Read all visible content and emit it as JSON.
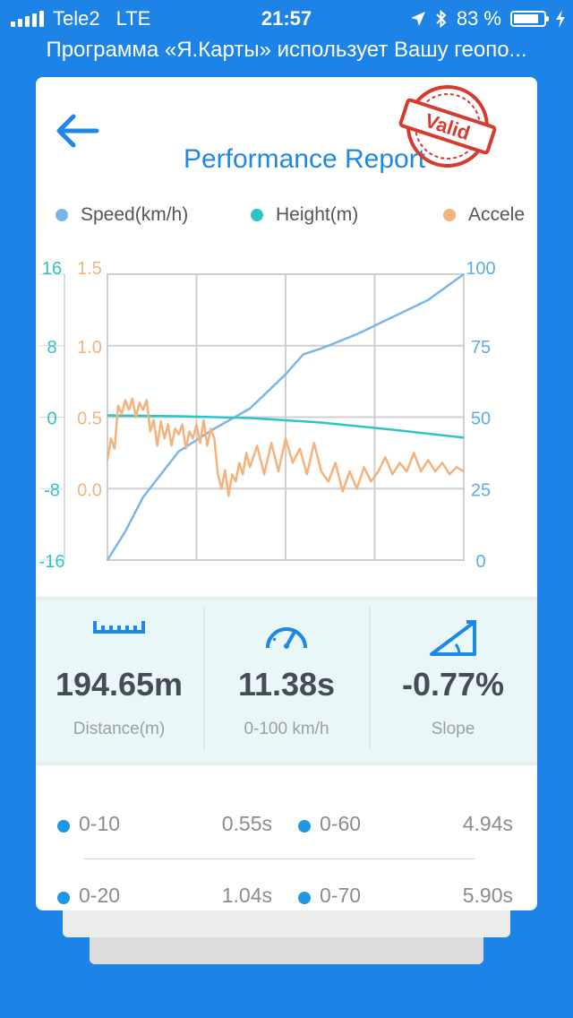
{
  "status": {
    "carrier": "Tele2",
    "network": "LTE",
    "time": "21:57",
    "battery": "83 %",
    "battery_level": 0.83
  },
  "banner": "Программа «Я.Карты» использует Вашу геопо...",
  "report": {
    "title": "Performance Report",
    "stamp_text": "Valid",
    "legend": [
      {
        "label": "Speed(km/h)",
        "color": "#7ab6ea"
      },
      {
        "label": "Height(m)",
        "color": "#2ec4c4"
      },
      {
        "label": "Accele",
        "color": "#f5b27c"
      }
    ]
  },
  "chart_data": {
    "type": "line",
    "axes": {
      "height_ticks": [
        "16",
        "8",
        "0",
        "-8",
        "-16"
      ],
      "accel_ticks": [
        "1.5",
        "1.0",
        "0.5",
        "0.0"
      ],
      "speed_ticks": [
        "100",
        "75",
        "50",
        "25",
        "0"
      ],
      "height_range": [
        -16,
        16
      ],
      "accel_range": [
        -0.5,
        1.5
      ],
      "speed_range": [
        0,
        100
      ]
    },
    "x_range": [
      0,
      10
    ],
    "grid": true,
    "series": [
      {
        "name": "Speed(km/h)",
        "axis": "speed",
        "color": "#7ab6ea",
        "x": [
          0,
          0.5,
          1,
          2,
          3,
          4,
          5,
          5.5,
          6,
          7,
          8,
          9,
          10
        ],
        "y": [
          0,
          10,
          22,
          38,
          46,
          53,
          65,
          72,
          74,
          79,
          85,
          91,
          100
        ]
      },
      {
        "name": "Height(m)",
        "axis": "height",
        "color": "#2ec4c4",
        "x": [
          0,
          2,
          4,
          6,
          8,
          10
        ],
        "y": [
          0.2,
          0.1,
          -0.1,
          -0.6,
          -1.4,
          -2.3
        ]
      },
      {
        "name": "Accele",
        "axis": "accel",
        "color": "#f5b27c",
        "x": [
          0,
          0.1,
          0.2,
          0.3,
          0.4,
          0.5,
          0.6,
          0.7,
          0.8,
          0.9,
          1.0,
          1.1,
          1.2,
          1.3,
          1.4,
          1.5,
          1.6,
          1.7,
          1.8,
          1.9,
          2.0,
          2.1,
          2.2,
          2.3,
          2.4,
          2.5,
          2.6,
          2.7,
          2.8,
          2.9,
          3.0,
          3.1,
          3.2,
          3.3,
          3.4,
          3.5,
          3.6,
          3.7,
          3.8,
          3.9,
          4.0,
          4.2,
          4.4,
          4.6,
          4.8,
          5.0,
          5.2,
          5.4,
          5.6,
          5.8,
          6.0,
          6.2,
          6.4,
          6.6,
          6.8,
          7.0,
          7.2,
          7.4,
          7.6,
          7.8,
          8.0,
          8.2,
          8.4,
          8.6,
          8.8,
          9.0,
          9.2,
          9.4,
          9.6,
          9.8,
          10.0
        ],
        "y": [
          0.2,
          0.35,
          0.28,
          0.58,
          0.52,
          0.62,
          0.55,
          0.63,
          0.5,
          0.6,
          0.55,
          0.62,
          0.4,
          0.48,
          0.3,
          0.47,
          0.35,
          0.45,
          0.3,
          0.42,
          0.38,
          0.45,
          0.28,
          0.4,
          0.35,
          0.45,
          0.32,
          0.48,
          0.3,
          0.42,
          0.35,
          0.1,
          0.0,
          0.13,
          -0.05,
          0.1,
          0.05,
          0.18,
          0.1,
          0.25,
          0.15,
          0.3,
          0.1,
          0.32,
          0.12,
          0.35,
          0.18,
          0.28,
          0.1,
          0.32,
          0.12,
          0.05,
          0.18,
          -0.02,
          0.12,
          0.0,
          0.15,
          0.05,
          0.12,
          0.22,
          0.1,
          0.18,
          0.12,
          0.25,
          0.12,
          0.2,
          0.12,
          0.18,
          0.1,
          0.15,
          0.12
        ]
      }
    ]
  },
  "stats": [
    {
      "value": "194.65m",
      "label": "Distance(m)",
      "icon": "ruler-icon"
    },
    {
      "value": "11.38s",
      "label": "0-100 km/h",
      "icon": "speedometer-icon"
    },
    {
      "value": "-0.77%",
      "label": "Slope",
      "icon": "slope-icon"
    }
  ],
  "splits": [
    {
      "name": "0-10",
      "time": "0.55s"
    },
    {
      "name": "0-60",
      "time": "4.94s"
    },
    {
      "name": "0-20",
      "time": "1.04s"
    },
    {
      "name": "0-70",
      "time": "5.90s"
    }
  ]
}
